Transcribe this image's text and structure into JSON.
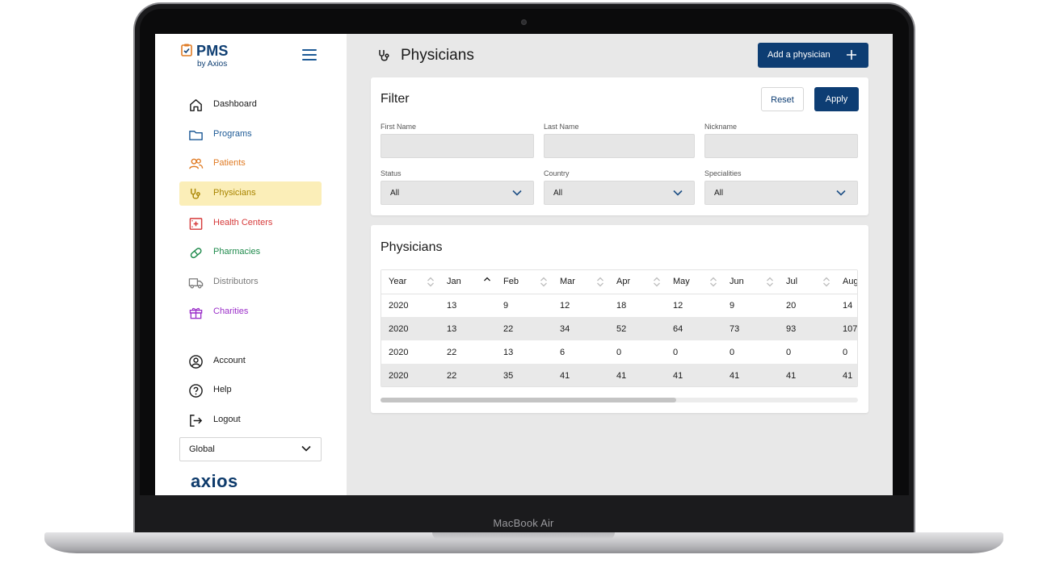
{
  "device": {
    "brand_label": "MacBook Air"
  },
  "app": {
    "logo_title": "PMS",
    "logo_subtitle": "by Axios",
    "footer_logo": "axios"
  },
  "sidebar": {
    "items": [
      {
        "label": "Dashboard",
        "icon": "home-icon",
        "color": "#1a1a1a"
      },
      {
        "label": "Programs",
        "icon": "folder-icon",
        "color": "#1d5a96"
      },
      {
        "label": "Patients",
        "icon": "users-icon",
        "color": "#e07b24"
      },
      {
        "label": "Physicians",
        "icon": "stethoscope-icon",
        "color": "#a88400",
        "active": true
      },
      {
        "label": "Health Centers",
        "icon": "hospital-icon",
        "color": "#d63a3a"
      },
      {
        "label": "Pharmacies",
        "icon": "pill-icon",
        "color": "#1f8a4c"
      },
      {
        "label": "Distributors",
        "icon": "truck-icon",
        "color": "#7a7a7a"
      },
      {
        "label": "Charities",
        "icon": "gift-icon",
        "color": "#9b2fc9"
      }
    ],
    "account_items": [
      {
        "label": "Account",
        "icon": "user-circle-icon"
      },
      {
        "label": "Help",
        "icon": "help-circle-icon"
      },
      {
        "label": "Logout",
        "icon": "logout-icon"
      }
    ],
    "region_select": {
      "value": "Global"
    }
  },
  "header": {
    "title": "Physicians",
    "add_button": "Add a physician"
  },
  "filter": {
    "title": "Filter",
    "reset": "Reset",
    "apply": "Apply",
    "fields": {
      "first_name": {
        "label": "First Name",
        "value": ""
      },
      "last_name": {
        "label": "Last Name",
        "value": ""
      },
      "nickname": {
        "label": "Nickname",
        "value": ""
      },
      "status": {
        "label": "Status",
        "value": "All"
      },
      "country": {
        "label": "Country",
        "value": "All"
      },
      "specialities": {
        "label": "Specialities",
        "value": "All"
      }
    }
  },
  "table": {
    "title": "Physicians",
    "columns": [
      "Year",
      "Jan",
      "Feb",
      "Mar",
      "Apr",
      "May",
      "Jun",
      "Jul",
      "Aug"
    ],
    "sorted_column": "Jan",
    "rows": [
      [
        "2020",
        "13",
        "9",
        "12",
        "18",
        "12",
        "9",
        "20",
        "14"
      ],
      [
        "2020",
        "13",
        "22",
        "34",
        "52",
        "64",
        "73",
        "93",
        "107"
      ],
      [
        "2020",
        "22",
        "13",
        "6",
        "0",
        "0",
        "0",
        "0",
        "0"
      ],
      [
        "2020",
        "22",
        "35",
        "41",
        "41",
        "41",
        "41",
        "41",
        "41"
      ]
    ]
  },
  "colors": {
    "primary": "#0d3d73",
    "active_nav_bg": "#fbeeb8"
  }
}
